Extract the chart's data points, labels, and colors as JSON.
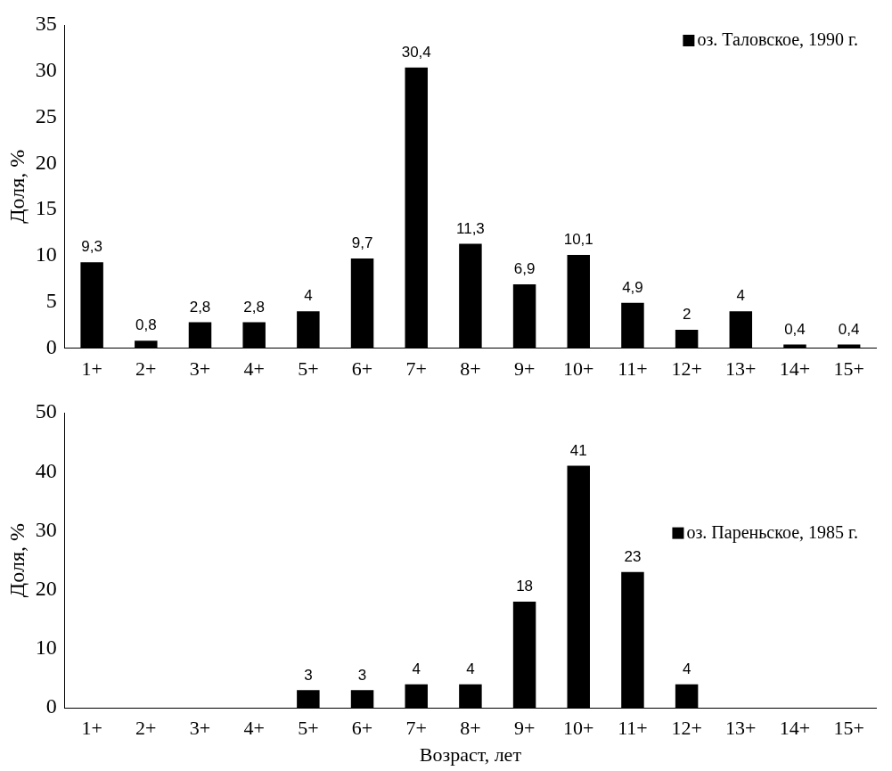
{
  "chart_data": [
    {
      "type": "bar",
      "ylabel": "Доля, %",
      "categories": [
        "1+",
        "2+",
        "3+",
        "4+",
        "5+",
        "6+",
        "7+",
        "8+",
        "9+",
        "10+",
        "11+",
        "12+",
        "13+",
        "14+",
        "15+"
      ],
      "series": [
        {
          "name": "оз. Таловское, 1990 г.",
          "color": "#000000",
          "values": [
            9.3,
            0.8,
            2.8,
            2.8,
            4,
            9.7,
            30.4,
            11.3,
            6.9,
            10.1,
            4.9,
            2,
            4,
            0.4,
            0.4
          ]
        }
      ],
      "value_labels": [
        "9,3",
        "0,8",
        "2,8",
        "2,8",
        "4",
        "9,7",
        "30,4",
        "11,3",
        "6,9",
        "10,1",
        "4,9",
        "2",
        "4",
        "0,4",
        "0,4"
      ],
      "ylim": [
        0,
        35
      ],
      "yticks": [
        0,
        5,
        10,
        15,
        20,
        25,
        30,
        35
      ],
      "legend": "top right",
      "grid": false
    },
    {
      "type": "bar",
      "ylabel": "Доля, %",
      "xlabel": "Возраст, лет",
      "categories": [
        "1+",
        "2+",
        "3+",
        "4+",
        "5+",
        "6+",
        "7+",
        "8+",
        "9+",
        "10+",
        "11+",
        "12+",
        "13+",
        "14+",
        "15+"
      ],
      "series": [
        {
          "name": "оз. Пареньское, 1985 г.",
          "color": "#000000",
          "values": [
            null,
            null,
            null,
            null,
            3,
            3,
            4,
            4,
            18,
            41,
            23,
            4,
            null,
            null,
            null
          ]
        }
      ],
      "data_labels": true,
      "ylim": [
        0,
        50
      ],
      "yticks": [
        0,
        10,
        20,
        30,
        40,
        50
      ],
      "legend": "right",
      "grid": false
    }
  ]
}
